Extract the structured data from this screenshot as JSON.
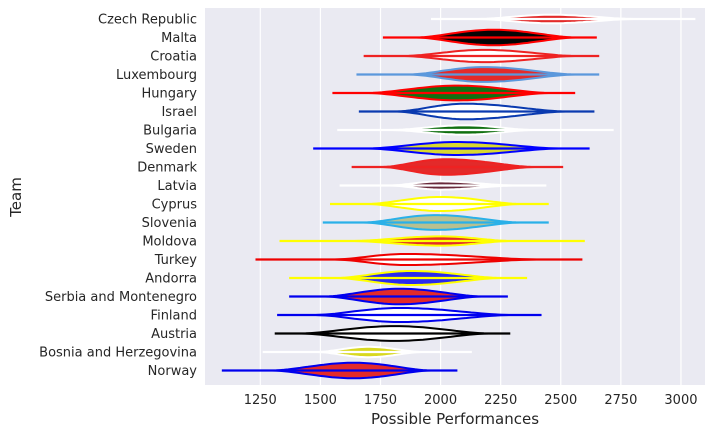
{
  "chart_data": {
    "type": "violin",
    "orientation": "horizontal",
    "xlabel": "Possible Performances",
    "ylabel": "Team",
    "xlim": [
      1020,
      3100
    ],
    "xticks": [
      1250,
      1500,
      1750,
      2000,
      2250,
      2500,
      2750,
      3000
    ],
    "grid": true,
    "background": "#eaeaf2",
    "series": [
      {
        "team": "Czech Republic",
        "min": 1960,
        "max": 3060,
        "center": 2460,
        "body_lo": 2160,
        "body_hi": 2800,
        "half_height": 0.23,
        "outline": "#ffffff",
        "fill": "#e32a2a"
      },
      {
        "team": "Malta",
        "min": 1760,
        "max": 2650,
        "center": 2220,
        "body_lo": 1900,
        "body_hi": 2560,
        "half_height": 0.42,
        "outline": "#ff0000",
        "fill": "#050505"
      },
      {
        "team": "Croatia",
        "min": 1680,
        "max": 2660,
        "center": 2180,
        "body_lo": 1850,
        "body_hi": 2560,
        "half_height": 0.33,
        "outline": "#ee2222",
        "fill": "#ffffff"
      },
      {
        "team": "Luxembourg",
        "min": 1650,
        "max": 2660,
        "center": 2180,
        "body_lo": 1870,
        "body_hi": 2560,
        "half_height": 0.4,
        "outline": "#5b98dc",
        "fill": "#e32a2a"
      },
      {
        "team": "Hungary",
        "min": 1550,
        "max": 2560,
        "center": 2070,
        "body_lo": 1700,
        "body_hi": 2450,
        "half_height": 0.4,
        "outline": "#ff0000",
        "fill": "#107010"
      },
      {
        "team": "Israel",
        "min": 1660,
        "max": 2640,
        "center": 2100,
        "body_lo": 1820,
        "body_hi": 2520,
        "half_height": 0.42,
        "outline": "#0a3ab0",
        "fill": "#ffffff"
      },
      {
        "team": "Bulgaria",
        "min": 1570,
        "max": 2720,
        "center": 2100,
        "body_lo": 1800,
        "body_hi": 2380,
        "half_height": 0.25,
        "outline": "#ffffff",
        "fill": "#107010"
      },
      {
        "team": "Sweden",
        "min": 1470,
        "max": 2620,
        "center": 2070,
        "body_lo": 1700,
        "body_hi": 2490,
        "half_height": 0.35,
        "outline": "#0000ff",
        "fill": "#d8d830"
      },
      {
        "team": "Denmark",
        "min": 1630,
        "max": 2510,
        "center": 2020,
        "body_lo": 1760,
        "body_hi": 2390,
        "half_height": 0.42,
        "outline": "#ee2222",
        "fill": "#e32a2a"
      },
      {
        "team": "Latvia",
        "min": 1580,
        "max": 2440,
        "center": 2000,
        "body_lo": 1790,
        "body_hi": 2300,
        "half_height": 0.22,
        "outline": "#ffffff",
        "fill": "#6a2a3a"
      },
      {
        "team": "Cyprus",
        "min": 1540,
        "max": 2450,
        "center": 2000,
        "body_lo": 1700,
        "body_hi": 2330,
        "half_height": 0.38,
        "outline": "#ffff00",
        "fill": "#ffffff"
      },
      {
        "team": "Slovenia",
        "min": 1510,
        "max": 2450,
        "center": 1980,
        "body_lo": 1680,
        "body_hi": 2330,
        "half_height": 0.4,
        "outline": "#2ab0e8",
        "fill": "#b8c090"
      },
      {
        "team": "Moldova",
        "min": 1330,
        "max": 2600,
        "center": 2000,
        "body_lo": 1640,
        "body_hi": 2290,
        "half_height": 0.25,
        "outline": "#ffff00",
        "fill": "#e32a2a"
      },
      {
        "team": "Turkey",
        "min": 1230,
        "max": 2590,
        "center": 1860,
        "body_lo": 1560,
        "body_hi": 2400,
        "half_height": 0.3,
        "outline": "#ee0000",
        "fill": "#ffffff"
      },
      {
        "team": "Andorra",
        "min": 1370,
        "max": 2360,
        "center": 1880,
        "body_lo": 1570,
        "body_hi": 2250,
        "half_height": 0.38,
        "outline": "#ffff00",
        "fill": "#2a2aee"
      },
      {
        "team": "Serbia and Montenegro",
        "min": 1370,
        "max": 2280,
        "center": 1830,
        "body_lo": 1520,
        "body_hi": 2170,
        "half_height": 0.42,
        "outline": "#0000ee",
        "fill": "#e32a2a"
      },
      {
        "team": "Finland",
        "min": 1320,
        "max": 2420,
        "center": 1830,
        "body_lo": 1480,
        "body_hi": 2290,
        "half_height": 0.38,
        "outline": "#0000ee",
        "fill": "#ffffff"
      },
      {
        "team": "Austria",
        "min": 1310,
        "max": 2290,
        "center": 1810,
        "body_lo": 1420,
        "body_hi": 2200,
        "half_height": 0.4,
        "outline": "#000000",
        "fill": "#ffffff"
      },
      {
        "team": "Bosnia and Herzegovina",
        "min": 1260,
        "max": 2130,
        "center": 1700,
        "body_lo": 1490,
        "body_hi": 1920,
        "half_height": 0.28,
        "outline": "#ffffff",
        "fill": "#d8d820"
      },
      {
        "team": "Norway",
        "min": 1090,
        "max": 2070,
        "center": 1640,
        "body_lo": 1300,
        "body_hi": 1960,
        "half_height": 0.42,
        "outline": "#0000ee",
        "fill": "#e32a2a"
      }
    ]
  }
}
